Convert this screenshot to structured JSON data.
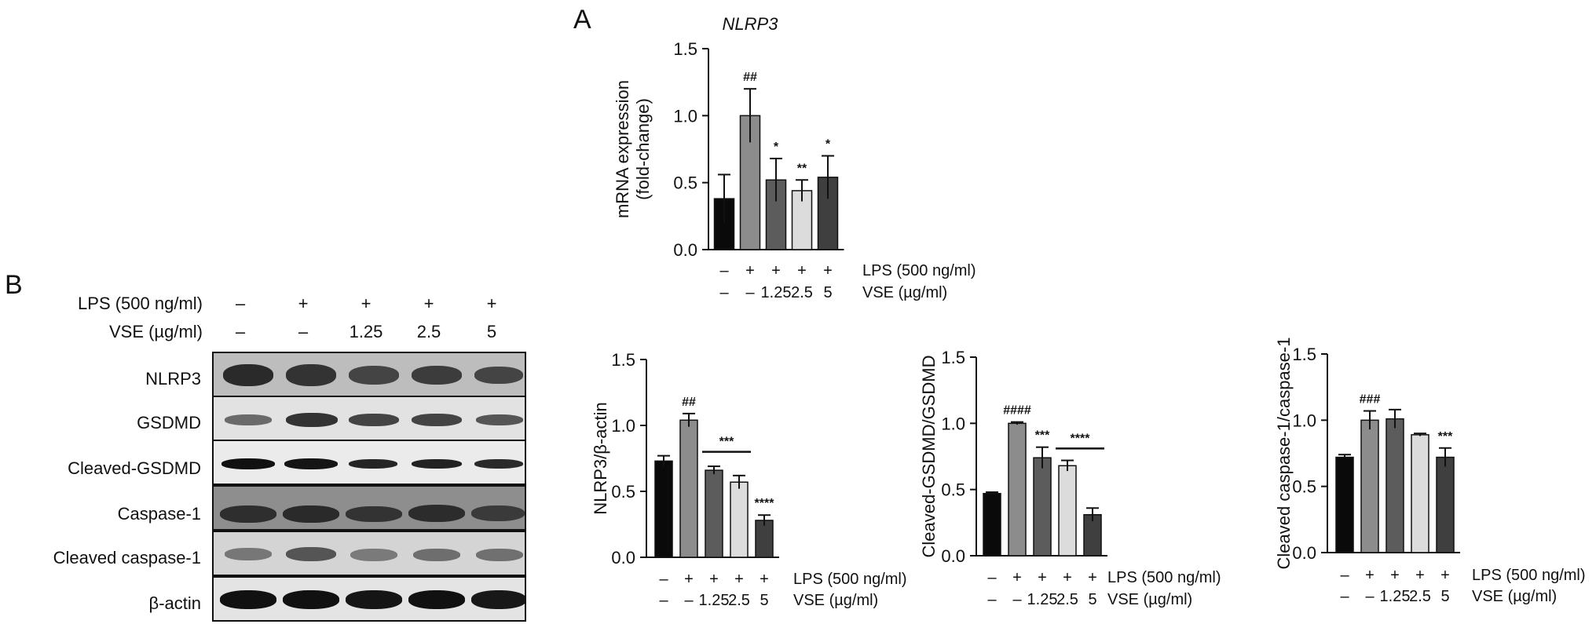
{
  "panel_labels": {
    "a": "A",
    "b": "B"
  },
  "blot": {
    "conditions": [
      {
        "label": "LPS (500 ng/ml)",
        "values": [
          "–",
          "+",
          "+",
          "+",
          "+"
        ]
      },
      {
        "label": "VSE (µg/ml)",
        "values": [
          "–",
          "–",
          "1.25",
          "2.5",
          "5"
        ]
      }
    ],
    "rows": [
      "NLRP3",
      "GSDMD",
      "Cleaved-GSDMD",
      "Caspase-1",
      "Cleaved caspase-1",
      "β-actin"
    ]
  },
  "chart_data": [
    {
      "type": "bar",
      "title": "NLRP3",
      "ylabel": [
        "mRNA expression",
        "(fold-change)"
      ],
      "ylim": [
        0,
        1.5
      ],
      "yticks": [
        "0.0",
        "0.5",
        "1.0",
        "1.5"
      ],
      "categories": [
        "1",
        "2",
        "3",
        "4",
        "5"
      ],
      "values": [
        0.38,
        1.0,
        0.52,
        0.44,
        0.54
      ],
      "errors": [
        0.18,
        0.2,
        0.16,
        0.08,
        0.16
      ],
      "annotations": [
        "",
        "##",
        "*",
        "**",
        "*"
      ],
      "conditions": {
        "lps_label": "LPS (500 ng/ml)",
        "lps": [
          "–",
          "+",
          "+",
          "+",
          "+"
        ],
        "vse_label": "VSE (µg/ml)",
        "vse": [
          "–",
          "–",
          "1.25",
          "2.5",
          "5"
        ]
      },
      "colors": [
        "#0a0a0a",
        "#8c8c8c",
        "#5c5c5c",
        "#dcdcdc",
        "#3f3f3f"
      ]
    },
    {
      "type": "bar",
      "title": "",
      "ylabel": [
        "NLRP3/β-actin"
      ],
      "ylim": [
        0,
        1.5
      ],
      "yticks": [
        "0.0",
        "0.5",
        "1.0",
        "1.5"
      ],
      "categories": [
        "1",
        "2",
        "3",
        "4",
        "5"
      ],
      "values": [
        0.73,
        1.04,
        0.66,
        0.57,
        0.28
      ],
      "errors": [
        0.04,
        0.05,
        0.03,
        0.05,
        0.04
      ],
      "annotations": [
        "",
        "##",
        "",
        "",
        "****"
      ],
      "bracket": {
        "from": 2,
        "to": 3,
        "y": 0.8,
        "label": "***"
      },
      "conditions": {
        "lps_label": "LPS (500 ng/ml)",
        "lps": [
          "–",
          "+",
          "+",
          "+",
          "+"
        ],
        "vse_label": "VSE (µg/ml)",
        "vse": [
          "–",
          "–",
          "1.25",
          "2.5",
          "5"
        ]
      },
      "colors": [
        "#0a0a0a",
        "#8c8c8c",
        "#5c5c5c",
        "#dcdcdc",
        "#3f3f3f"
      ]
    },
    {
      "type": "bar",
      "title": "",
      "ylabel": [
        "Cleaved-GSDMD/GSDMD"
      ],
      "ylim": [
        0,
        1.5
      ],
      "yticks": [
        "0.0",
        "0.5",
        "1.0",
        "1.5"
      ],
      "categories": [
        "1",
        "2",
        "3",
        "4",
        "5"
      ],
      "values": [
        0.47,
        1.0,
        0.74,
        0.68,
        0.31
      ],
      "errors": [
        0.01,
        0.01,
        0.08,
        0.04,
        0.05
      ],
      "annotations": [
        "",
        "####",
        "***",
        "",
        ""
      ],
      "bracket": {
        "from": 3,
        "to": 4,
        "y": 0.81,
        "label": "****"
      },
      "conditions": {
        "lps_label": "LPS (500 ng/ml)",
        "lps": [
          "–",
          "+",
          "+",
          "+",
          "+"
        ],
        "vse_label": "VSE (µg/ml)",
        "vse": [
          "–",
          "–",
          "1.25",
          "2.5",
          "5"
        ]
      },
      "colors": [
        "#0a0a0a",
        "#8c8c8c",
        "#5c5c5c",
        "#dcdcdc",
        "#3f3f3f"
      ]
    },
    {
      "type": "bar",
      "title": "",
      "ylabel": [
        "Cleaved caspase-1/caspase-1"
      ],
      "ylim": [
        0,
        1.5
      ],
      "yticks": [
        "0.0",
        "0.5",
        "1.0",
        "1.5"
      ],
      "categories": [
        "1",
        "2",
        "3",
        "4",
        "5"
      ],
      "values": [
        0.72,
        1.0,
        1.01,
        0.89,
        0.72
      ],
      "errors": [
        0.02,
        0.07,
        0.07,
        0.01,
        0.07
      ],
      "annotations": [
        "",
        "###",
        "",
        "",
        "***"
      ],
      "conditions": {
        "lps_label": "LPS (500 ng/ml)",
        "lps": [
          "–",
          "+",
          "+",
          "+",
          "+"
        ],
        "vse_label": "VSE (µg/ml)",
        "vse": [
          "–",
          "–",
          "1.25",
          "2.5",
          "5"
        ]
      },
      "colors": [
        "#0a0a0a",
        "#8c8c8c",
        "#5c5c5c",
        "#dcdcdc",
        "#3f3f3f"
      ]
    }
  ]
}
